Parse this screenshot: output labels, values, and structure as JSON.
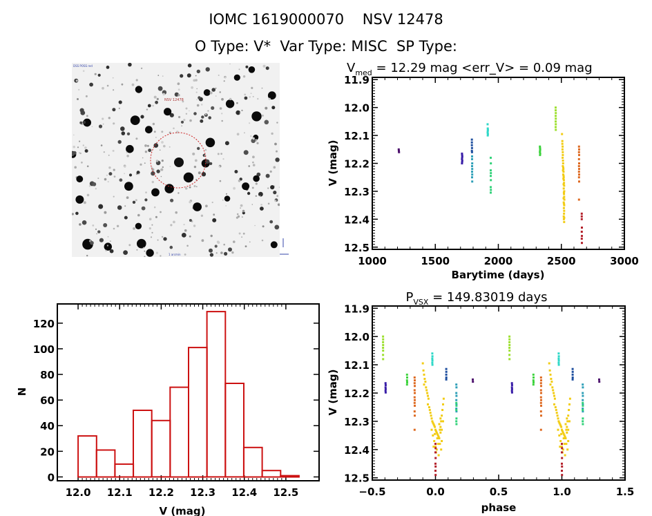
{
  "header": {
    "line1": "IOMC 1619000070    NSV 12478",
    "line2": "O Type: V*  Var Type: MISC  SP Type:"
  },
  "finder_chart": {
    "target_label": "NSV 12478",
    "corner_top_left": "DSS POSS red",
    "corner_bottom_center": "1 arcmin",
    "circle_color": "#cc2222"
  },
  "chart_data": [
    {
      "type": "scatter",
      "id": "lightcurve",
      "title_main": "V",
      "title_sub": "med",
      "title_rest": " = 12.29 mag <err_V> = 0.09 mag",
      "xlabel": "Barytime (days)",
      "ylabel": "V (mag)",
      "xlim": [
        1000,
        3000
      ],
      "ylim": [
        11.9,
        12.5
      ],
      "y_inverted": true,
      "xticks": [
        "1000",
        "1500",
        "2000",
        "2500",
        "3000"
      ],
      "yticks": [
        "11.9",
        "12.0",
        "12.1",
        "12.2",
        "12.3",
        "12.4",
        "12.5"
      ],
      "series": [
        {
          "name": "s1",
          "color": "#4b0f6b",
          "x": [
            1210,
            1211,
            1212
          ],
          "y": [
            12.15,
            12.155,
            12.16
          ]
        },
        {
          "name": "s2",
          "color": "#3a1fa8",
          "x": [
            1712,
            1713,
            1714,
            1713,
            1712,
            1714,
            1713,
            1712
          ],
          "y": [
            12.165,
            12.17,
            12.175,
            12.18,
            12.185,
            12.19,
            12.195,
            12.2
          ]
        },
        {
          "name": "s3",
          "color": "#1f4f9f",
          "x": [
            1790,
            1790,
            1790,
            1791,
            1790,
            1791
          ],
          "y": [
            12.115,
            12.125,
            12.135,
            12.145,
            12.155,
            12.16
          ]
        },
        {
          "name": "s4",
          "color": "#2fa0b8",
          "x": [
            1792,
            1792,
            1793,
            1792,
            1793,
            1792,
            1793,
            1792,
            1793
          ],
          "y": [
            12.175,
            12.185,
            12.2,
            12.21,
            12.22,
            12.23,
            12.24,
            12.25,
            12.265
          ]
        },
        {
          "name": "s5",
          "color": "#2fd8c8",
          "x": [
            1915,
            1916,
            1917,
            1916,
            1915,
            1917,
            1916
          ],
          "y": [
            12.06,
            12.075,
            12.08,
            12.085,
            12.09,
            12.095,
            12.1
          ]
        },
        {
          "name": "s6",
          "color": "#32d27a",
          "x": [
            1940,
            1941,
            1940,
            1941,
            1940,
            1941,
            1940,
            1941,
            1940
          ],
          "y": [
            12.18,
            12.2,
            12.225,
            12.235,
            12.245,
            12.26,
            12.285,
            12.295,
            12.305
          ]
        },
        {
          "name": "s7",
          "color": "#3dd33d",
          "x": [
            2330,
            2331,
            2332,
            2331,
            2330,
            2332,
            2331
          ],
          "y": [
            12.14,
            12.145,
            12.15,
            12.155,
            12.16,
            12.165,
            12.17
          ]
        },
        {
          "name": "s8",
          "color": "#9de030",
          "x": [
            2455,
            2455,
            2456,
            2455,
            2456,
            2455,
            2456,
            2455,
            2456
          ],
          "y": [
            12.0,
            12.01,
            12.02,
            12.03,
            12.04,
            12.05,
            12.06,
            12.07,
            12.08
          ]
        },
        {
          "name": "s9",
          "color": "#f2cc14",
          "x": [
            2505,
            2508,
            2508,
            2510,
            2509,
            2511,
            2512,
            2510,
            2513,
            2514,
            2512,
            2515,
            2516,
            2513,
            2517,
            2515,
            2518,
            2519,
            2516,
            2520,
            2521,
            2518,
            2522,
            2519,
            2523,
            2520,
            2521,
            2522,
            2518,
            2524,
            2519,
            2521,
            2523,
            2520,
            2522,
            2521,
            2519,
            2523,
            2520,
            2522
          ],
          "y": [
            12.095,
            12.12,
            12.13,
            12.14,
            12.15,
            12.16,
            12.17,
            12.18,
            12.19,
            12.2,
            12.21,
            12.215,
            12.22,
            12.225,
            12.23,
            12.24,
            12.245,
            12.25,
            12.255,
            12.26,
            12.27,
            12.275,
            12.28,
            12.29,
            12.3,
            12.305,
            12.31,
            12.32,
            12.325,
            12.33,
            12.34,
            12.345,
            12.35,
            12.36,
            12.37,
            12.38,
            12.39,
            12.395,
            12.4,
            12.41
          ]
        },
        {
          "name": "s10",
          "color": "#de6a22",
          "x": [
            2640,
            2641,
            2640,
            2641,
            2640,
            2641,
            2640,
            2641,
            2640,
            2641,
            2640,
            2641,
            2640
          ],
          "y": [
            12.14,
            12.15,
            12.16,
            12.17,
            12.185,
            12.2,
            12.21,
            12.22,
            12.23,
            12.24,
            12.25,
            12.265,
            12.33
          ]
        },
        {
          "name": "s11",
          "color": "#b3202a",
          "x": [
            2662,
            2662,
            2662,
            2663,
            2662,
            2663,
            2662,
            2663
          ],
          "y": [
            12.38,
            12.39,
            12.4,
            12.43,
            12.445,
            12.46,
            12.47,
            12.485
          ]
        }
      ]
    },
    {
      "type": "bar",
      "id": "histogram",
      "style": "step-outline",
      "xlabel": "V (mag)",
      "ylabel": "N",
      "xlim": [
        11.95,
        12.58
      ],
      "ylim": [
        -3,
        135
      ],
      "xticks": [
        "12.0",
        "12.1",
        "12.2",
        "12.3",
        "12.4",
        "12.5"
      ],
      "yticks": [
        "0",
        "20",
        "40",
        "60",
        "80",
        "100",
        "120"
      ],
      "bin_width": 0.0443,
      "bin_start": 12.0,
      "values": [
        32,
        21,
        10,
        52,
        44,
        70,
        101,
        129,
        73,
        23,
        5,
        1
      ],
      "bar_color": "#cc1111"
    },
    {
      "type": "scatter",
      "id": "phased",
      "title_main": "P",
      "title_sub": "VSX",
      "title_rest": " = 149.83019 days",
      "xlabel": "phase",
      "ylabel": "V (mag)",
      "xlim": [
        -0.5,
        1.5
      ],
      "ylim": [
        11.9,
        12.5
      ],
      "y_inverted": true,
      "xticks": [
        "−0.5",
        "0.0",
        "0.5",
        "1.0",
        "1.5"
      ],
      "yticks": [
        "11.9",
        "12.0",
        "12.1",
        "12.2",
        "12.3",
        "12.4",
        "12.5"
      ],
      "period_days": 149.83019,
      "repeat_offset": 1.0,
      "series": [
        {
          "name": "s1",
          "color": "#4b0f6b",
          "x": [
            0.295,
            0.296
          ],
          "y": [
            12.152,
            12.16
          ]
        },
        {
          "name": "s2",
          "color": "#3a1fa8",
          "x": [
            -0.395,
            -0.394,
            -0.395,
            -0.394,
            -0.395,
            -0.394
          ],
          "y": [
            12.165,
            12.172,
            12.18,
            12.186,
            12.192,
            12.198
          ]
        },
        {
          "name": "s3",
          "color": "#1f4f9f",
          "x": [
            0.085,
            0.086,
            0.085,
            0.086,
            0.085
          ],
          "y": [
            12.115,
            12.125,
            12.135,
            12.145,
            12.152
          ]
        },
        {
          "name": "s4",
          "color": "#2fa0b8",
          "x": [
            0.165,
            0.166,
            0.165,
            0.166,
            0.165,
            0.166,
            0.165,
            0.166
          ],
          "y": [
            12.17,
            12.18,
            12.2,
            12.21,
            12.225,
            12.24,
            12.255,
            12.265
          ]
        },
        {
          "name": "s5",
          "color": "#2fd8c8",
          "x": [
            -0.025,
            -0.024,
            -0.025,
            -0.024,
            -0.025,
            -0.024
          ],
          "y": [
            12.06,
            12.07,
            12.078,
            12.085,
            12.093,
            12.1
          ]
        },
        {
          "name": "s6",
          "color": "#32d27a",
          "x": [
            0.165,
            0.166,
            0.165,
            0.166,
            0.165,
            0.166
          ],
          "y": [
            12.235,
            12.245,
            12.26,
            12.29,
            12.3,
            12.31
          ]
        },
        {
          "name": "s7",
          "color": "#3dd33d",
          "x": [
            -0.225,
            -0.224,
            -0.225,
            -0.224,
            -0.225
          ],
          "y": [
            12.135,
            12.145,
            12.155,
            12.162,
            12.17
          ]
        },
        {
          "name": "s8",
          "color": "#9de030",
          "x": [
            -0.415,
            -0.414,
            -0.415,
            -0.414,
            -0.415,
            -0.414,
            -0.415,
            -0.414
          ],
          "y": [
            12.0,
            12.01,
            12.02,
            12.03,
            12.04,
            12.05,
            12.065,
            12.08
          ]
        },
        {
          "name": "s9",
          "color": "#f2cc14",
          "x": [
            -0.1,
            -0.095,
            -0.09,
            -0.085,
            -0.08,
            -0.09,
            -0.075,
            -0.07,
            -0.065,
            -0.06,
            -0.055,
            -0.06,
            -0.05,
            -0.045,
            -0.04,
            -0.035,
            -0.03,
            -0.025,
            -0.02,
            -0.015,
            -0.01,
            -0.005,
            0.0,
            0.005,
            0.01,
            0.015,
            0.02,
            0.025,
            0.03,
            0.035,
            0.04,
            0.045,
            0.05,
            0.055,
            0.06,
            0.065,
            -0.03,
            -0.02,
            -0.01,
            0.0,
            0.01,
            0.02,
            0.03,
            0.04,
            0.05,
            -0.015,
            0.005,
            0.025,
            0.045,
            0.035,
            0.015,
            -0.005,
            0.06,
            0.05,
            0.04,
            0.03
          ],
          "y": [
            12.095,
            12.12,
            12.135,
            12.15,
            12.16,
            12.17,
            12.18,
            12.19,
            12.2,
            12.21,
            12.22,
            12.24,
            12.25,
            12.26,
            12.27,
            12.28,
            12.29,
            12.3,
            12.305,
            12.31,
            12.315,
            12.32,
            12.33,
            12.335,
            12.34,
            12.345,
            12.35,
            12.355,
            12.36,
            12.33,
            12.32,
            12.3,
            12.28,
            12.26,
            12.24,
            12.22,
            12.33,
            12.35,
            12.37,
            12.39,
            12.4,
            12.38,
            12.36,
            12.34,
            12.37,
            12.39,
            12.41,
            12.42,
            12.4,
            12.38,
            12.36,
            12.345,
            12.3,
            12.33,
            12.29,
            12.31
          ]
        },
        {
          "name": "s10",
          "color": "#de6a22",
          "x": [
            -0.165,
            -0.164,
            -0.165,
            -0.164,
            -0.165,
            -0.164,
            -0.165,
            -0.164,
            -0.165,
            -0.164,
            -0.165,
            -0.164,
            -0.165
          ],
          "y": [
            12.145,
            12.155,
            12.165,
            12.175,
            12.19,
            12.2,
            12.215,
            12.225,
            12.235,
            12.245,
            12.265,
            12.28,
            12.33
          ]
        },
        {
          "name": "s11",
          "color": "#b3202a",
          "x": [
            0.0,
            0.001,
            0.0,
            0.001,
            0.0,
            0.001,
            0.0,
            0.001
          ],
          "y": [
            12.38,
            12.395,
            12.41,
            12.43,
            12.45,
            12.46,
            12.475,
            12.49
          ]
        }
      ]
    }
  ]
}
